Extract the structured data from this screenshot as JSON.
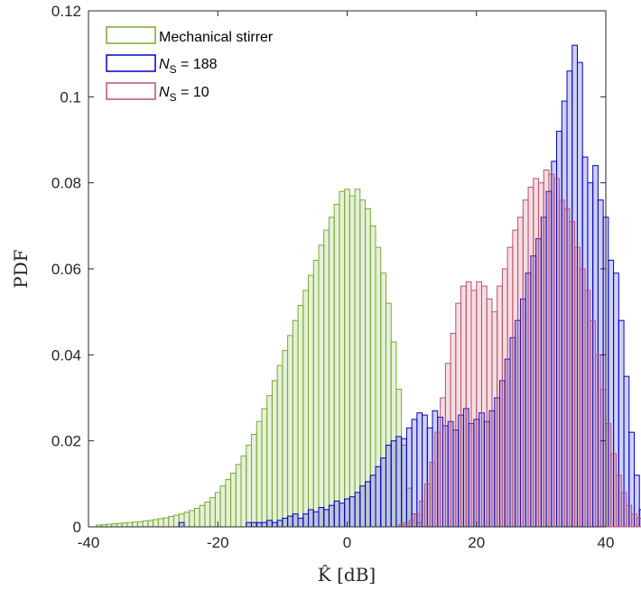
{
  "chart_data": {
    "type": "histogram",
    "xlabel": "K̂ [dB]",
    "ylabel": "PDF",
    "xlim": [
      -40,
      40
    ],
    "ylim": [
      0,
      0.12
    ],
    "xticks": [
      "-40",
      "-20",
      "0",
      "20",
      "40"
    ],
    "yticks": [
      "0",
      "0.02",
      "0.04",
      "0.06",
      "0.08",
      "0.1",
      "0.12"
    ],
    "grid": false,
    "legend_position": "top-left",
    "bin_width": 0.8,
    "series": [
      {
        "name": "Mechanical stirrer",
        "legend_main": "Mechanical stirrer",
        "legend_sub": "",
        "legend_suffix": "",
        "color": "#77AC30",
        "bin_start": -38.8,
        "values": [
          0.0004,
          0.0005,
          0.0006,
          0.0007,
          0.0008,
          0.0009,
          0.001,
          0.0011,
          0.0012,
          0.0014,
          0.0015,
          0.0017,
          0.0019,
          0.0021,
          0.0024,
          0.0027,
          0.003,
          0.0034,
          0.0038,
          0.0043,
          0.005,
          0.0058,
          0.0068,
          0.008,
          0.0095,
          0.011,
          0.0125,
          0.0145,
          0.0165,
          0.019,
          0.0215,
          0.0245,
          0.0275,
          0.0305,
          0.034,
          0.0375,
          0.041,
          0.0445,
          0.048,
          0.0515,
          0.055,
          0.0585,
          0.062,
          0.0655,
          0.069,
          0.072,
          0.075,
          0.078,
          0.0785,
          0.077,
          0.0785,
          0.076,
          0.074,
          0.07,
          0.065,
          0.059,
          0.052,
          0.043,
          0.032,
          0.019,
          0.009,
          0.003,
          0.001
        ]
      },
      {
        "name": "N_S = 188",
        "legend_main": "N",
        "legend_sub": "S",
        "legend_suffix": " = 188",
        "color": "#0000CC",
        "bin_start": -26.0,
        "values": [
          0.001,
          0,
          0,
          0,
          0,
          0,
          0,
          0,
          0,
          0,
          0,
          0,
          0,
          0.001,
          0.001,
          0.001,
          0.001,
          0.0015,
          0.001,
          0.0015,
          0.002,
          0.0025,
          0.003,
          0.002,
          0.003,
          0.004,
          0.0035,
          0.0045,
          0.004,
          0.005,
          0.006,
          0.0055,
          0.0065,
          0.007,
          0.008,
          0.0095,
          0.0105,
          0.012,
          0.014,
          0.016,
          0.019,
          0.02,
          0.021,
          0.0205,
          0.023,
          0.025,
          0.0265,
          0.026,
          0.023,
          0.027,
          0.0255,
          0.0235,
          0.0245,
          0.0225,
          0.026,
          0.0275,
          0.024,
          0.025,
          0.0265,
          0.0245,
          0.027,
          0.03,
          0.034,
          0.039,
          0.044,
          0.048,
          0.053,
          0.059,
          0.063,
          0.067,
          0.072,
          0.078,
          0.085,
          0.092,
          0.099,
          0.106,
          0.112,
          0.108,
          0.086,
          0.08,
          0.084,
          0.076,
          0.072,
          0.062,
          0.059,
          0.048,
          0.035,
          0.022,
          0.012,
          0.004
        ]
      },
      {
        "name": "N_S = 10",
        "legend_main": "N",
        "legend_sub": "S",
        "legend_suffix": " = 10",
        "color": "#C0506A",
        "bin_start": 8.0,
        "values": [
          0.0005,
          0.001,
          0.0015,
          0.003,
          0.006,
          0.01,
          0.015,
          0.022,
          0.03,
          0.038,
          0.045,
          0.052,
          0.056,
          0.057,
          0.055,
          0.057,
          0.056,
          0.053,
          0.05,
          0.056,
          0.06,
          0.065,
          0.069,
          0.072,
          0.076,
          0.079,
          0.081,
          0.08,
          0.083,
          0.082,
          0.081,
          0.076,
          0.074,
          0.071,
          0.065,
          0.06,
          0.055,
          0.048,
          0.04,
          0.032,
          0.024,
          0.017,
          0.012,
          0.008,
          0.005,
          0.003,
          0.002,
          0.001,
          0.0008,
          0.0006,
          0.0004
        ]
      }
    ]
  }
}
